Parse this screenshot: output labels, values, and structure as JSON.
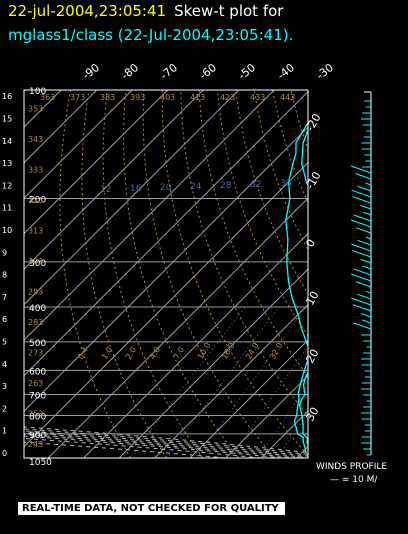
{
  "header": {
    "datetime": "22-jul-2004,23:05:41",
    "title": "Skew-t plot for",
    "subtitle": "mglass1/class (22-Jul-2004,23:05:41)."
  },
  "footer": {
    "quality_note": "REAL-TIME DATA, NOT CHECKED FOR QUALITY",
    "winds_profile_label": "WINDS PROFILE",
    "wind_scale_label": "— = 10 M/"
  },
  "colors": {
    "background": "#000000",
    "frame": "#ffffff",
    "grid": "#9a9a9a",
    "dry_adiabat": "#b08a4a",
    "moist": "#b6b6b6",
    "mixing_ratio": "#4a6a9a",
    "trace": "#00ffff",
    "header_date": "#ffff00"
  },
  "chart_data": {
    "type": "line",
    "chart_kind": "skew-t log-p",
    "xlim": [
      -40,
      40
    ],
    "pressure_range_mb": [
      1050,
      100
    ],
    "pressure_ticks": [
      "100",
      "200",
      "300",
      "400",
      "500",
      "600",
      "700",
      "800",
      "900",
      "1050"
    ],
    "height_km_ticks": [
      "0",
      "1",
      "2",
      "3",
      "4",
      "5",
      "6",
      "7",
      "8",
      "9",
      "10",
      "11",
      "12",
      "13",
      "14",
      "15",
      "16"
    ],
    "top_temp_ticks": [
      "-90",
      "-80",
      "-70",
      "-60",
      "-50",
      "-40",
      "-30"
    ],
    "right_temp_ticks": [
      "-20",
      "-10",
      "0",
      "10",
      "20",
      "30"
    ],
    "dry_adiabat_labels": [
      "243",
      "253",
      "263",
      "273",
      "283",
      "293",
      "303",
      "313",
      "323",
      "333",
      "343",
      "353",
      "363",
      "373",
      "383",
      "393",
      "403",
      "413",
      "423",
      "433",
      "443"
    ],
    "mixing_ratio_labels": [
      "0.4",
      "1.0",
      "2.0",
      "4.0",
      "7.0",
      "10.0",
      "16.0",
      "24.0",
      "32.0"
    ],
    "moist_labels": [
      "12",
      "16",
      "20",
      "24",
      "28",
      "32",
      "36"
    ],
    "series": [
      {
        "key": "temperature",
        "points": [
          [
            24.6,
            1013
          ],
          [
            21.7,
            984
          ],
          [
            20.2,
            973
          ],
          [
            18.5,
            950
          ],
          [
            17.5,
            925
          ],
          [
            15.0,
            900
          ],
          [
            12.5,
            850
          ],
          [
            9.5,
            800
          ],
          [
            6.0,
            750
          ],
          [
            4.8,
            720
          ],
          [
            4.5,
            700
          ],
          [
            3.0,
            680
          ],
          [
            1.5,
            660
          ],
          [
            0.4,
            640
          ],
          [
            -0.5,
            620
          ],
          [
            -1.0,
            600
          ],
          [
            -2.5,
            570
          ],
          [
            -4.5,
            540
          ],
          [
            -6.3,
            500
          ],
          [
            -10.0,
            460
          ],
          [
            -13.2,
            420
          ],
          [
            -17.3,
            380
          ],
          [
            -21.9,
            340
          ],
          [
            -27.4,
            300
          ],
          [
            -34.4,
            260
          ],
          [
            -41.5,
            225
          ],
          [
            -48.0,
            200
          ],
          [
            -55.0,
            180
          ],
          [
            -61.5,
            160
          ],
          [
            -67.0,
            140
          ],
          [
            -70.0,
            125
          ],
          [
            -73.0,
            110
          ],
          [
            -76.0,
            100
          ]
        ]
      },
      {
        "key": "dewpoint",
        "points": [
          [
            21.0,
            1013
          ],
          [
            19.5,
            984
          ],
          [
            17.5,
            950
          ],
          [
            16.0,
            920
          ],
          [
            13.5,
            900
          ],
          [
            11.0,
            860
          ],
          [
            9.0,
            830
          ],
          [
            8.0,
            800
          ],
          [
            6.0,
            760
          ],
          [
            4.0,
            720
          ],
          [
            2.0,
            690
          ],
          [
            0.5,
            660
          ],
          [
            -1.0,
            630
          ],
          [
            -2.5,
            600
          ],
          [
            -4.5,
            560
          ],
          [
            -7.5,
            520
          ],
          [
            -10.0,
            500
          ],
          [
            -15.0,
            460
          ],
          [
            -20.0,
            420
          ],
          [
            -26.0,
            380
          ],
          [
            -32.0,
            340
          ],
          [
            -38.0,
            300
          ],
          [
            -44.0,
            260
          ],
          [
            -50.0,
            230
          ],
          [
            -55.0,
            200
          ],
          [
            -60.0,
            180
          ],
          [
            -64.0,
            160
          ],
          [
            -66.0,
            150
          ],
          [
            -69.0,
            140
          ],
          [
            -71.0,
            125
          ],
          [
            -72.0,
            110
          ],
          [
            -75.0,
            100
          ]
        ]
      }
    ]
  }
}
